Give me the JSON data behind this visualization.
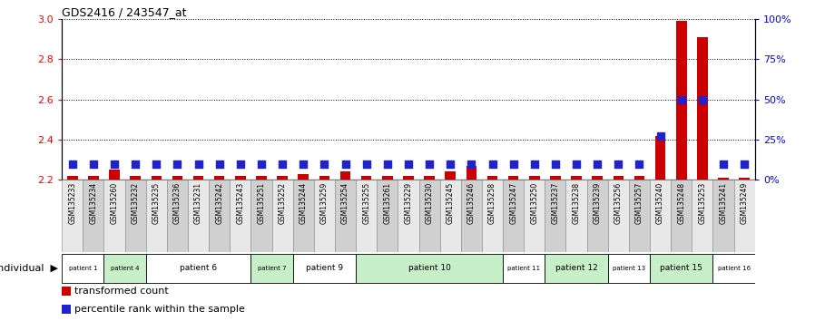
{
  "title": "GDS2416 / 243547_at",
  "samples": [
    "GSM135233",
    "GSM135234",
    "GSM135260",
    "GSM135232",
    "GSM135235",
    "GSM135236",
    "GSM135231",
    "GSM135242",
    "GSM135243",
    "GSM135251",
    "GSM135252",
    "GSM135244",
    "GSM135259",
    "GSM135254",
    "GSM135255",
    "GSM135261",
    "GSM135229",
    "GSM135230",
    "GSM135245",
    "GSM135246",
    "GSM135258",
    "GSM135247",
    "GSM135250",
    "GSM135237",
    "GSM135238",
    "GSM135239",
    "GSM135256",
    "GSM135257",
    "GSM135240",
    "GSM135248",
    "GSM135253",
    "GSM135241",
    "GSM135249"
  ],
  "transformed_count": [
    2.22,
    2.22,
    2.25,
    2.22,
    2.22,
    2.22,
    2.22,
    2.22,
    2.22,
    2.22,
    2.22,
    2.23,
    2.22,
    2.24,
    2.22,
    2.22,
    2.22,
    2.22,
    2.24,
    2.27,
    2.22,
    2.22,
    2.22,
    2.22,
    2.22,
    2.22,
    2.22,
    2.22,
    2.42,
    2.99,
    2.91,
    2.21,
    2.21
  ],
  "percentile_rank": [
    10,
    10,
    10,
    10,
    10,
    10,
    10,
    10,
    10,
    10,
    10,
    10,
    10,
    10,
    10,
    10,
    10,
    10,
    10,
    10,
    10,
    10,
    10,
    10,
    10,
    10,
    10,
    10,
    27,
    50,
    50,
    10,
    10
  ],
  "patient_groups": [
    {
      "label": "patient 1",
      "start": 0,
      "end": 2,
      "color": "#ffffff"
    },
    {
      "label": "patient 4",
      "start": 2,
      "end": 4,
      "color": "#c8f0c8"
    },
    {
      "label": "patient 6",
      "start": 4,
      "end": 9,
      "color": "#ffffff"
    },
    {
      "label": "patient 7",
      "start": 9,
      "end": 11,
      "color": "#c8f0c8"
    },
    {
      "label": "patient 9",
      "start": 11,
      "end": 14,
      "color": "#ffffff"
    },
    {
      "label": "patient 10",
      "start": 14,
      "end": 21,
      "color": "#c8f0c8"
    },
    {
      "label": "patient 11",
      "start": 21,
      "end": 23,
      "color": "#ffffff"
    },
    {
      "label": "patient 12",
      "start": 23,
      "end": 26,
      "color": "#c8f0c8"
    },
    {
      "label": "patient 13",
      "start": 26,
      "end": 28,
      "color": "#ffffff"
    },
    {
      "label": "patient 15",
      "start": 28,
      "end": 31,
      "color": "#c8f0c8"
    },
    {
      "label": "patient 16",
      "start": 31,
      "end": 33,
      "color": "#ffffff"
    }
  ],
  "ylim_left": [
    2.2,
    3.0
  ],
  "ylim_right": [
    0,
    100
  ],
  "yticks_left": [
    2.2,
    2.4,
    2.6,
    2.8,
    3.0
  ],
  "yticks_right": [
    0,
    25,
    50,
    75,
    100
  ],
  "ytick_labels_right": [
    "0%",
    "25%",
    "50%",
    "75%",
    "100%"
  ],
  "bar_color": "#cc0000",
  "dot_color": "#2222cc",
  "bar_width": 0.5,
  "dot_size": 28,
  "grid_color": "#000000",
  "bg_color": "#ffffff",
  "individual_label": "individual",
  "legend_items": [
    {
      "label": "transformed count",
      "color": "#cc0000"
    },
    {
      "label": "percentile rank within the sample",
      "color": "#2222cc"
    }
  ],
  "sample_col_colors": [
    "#e8e8e8",
    "#d0d0d0"
  ]
}
